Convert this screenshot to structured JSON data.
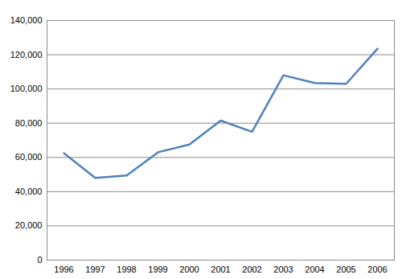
{
  "chart_data": {
    "type": "line",
    "categories": [
      "1996",
      "1997",
      "1998",
      "1999",
      "2000",
      "2001",
      "2002",
      "2003",
      "2004",
      "2005",
      "2006"
    ],
    "values": [
      62500,
      48000,
      49500,
      63000,
      67500,
      81500,
      75000,
      108000,
      103500,
      103000,
      123500
    ],
    "color": "#4f81bd",
    "ylim": [
      0,
      140000
    ],
    "yticks": [
      0,
      {
        "value": 20000,
        "label": "20,000"
      },
      {
        "value": 40000,
        "label": "40,000"
      },
      {
        "value": 60000,
        "label": "60,000"
      },
      {
        "value": 80000,
        "label": "80,000"
      },
      {
        "value": 100000,
        "label": "100,000"
      },
      {
        "value": 120000,
        "label": "120,000"
      },
      {
        "value": 140000,
        "label": "140,000"
      }
    ],
    "grid": true
  }
}
